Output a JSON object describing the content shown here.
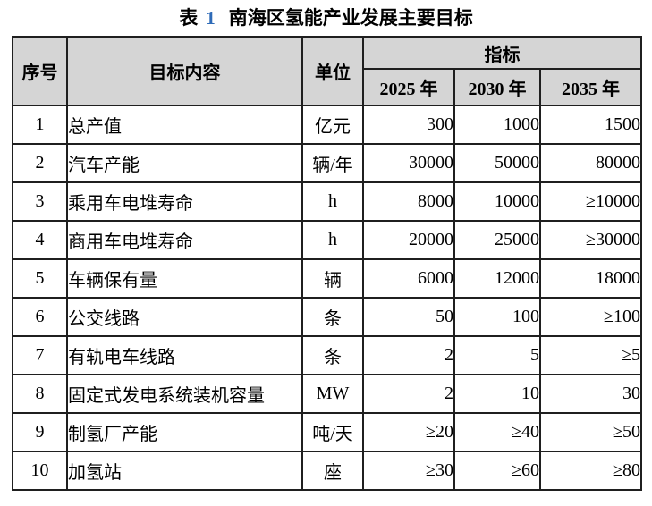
{
  "title": {
    "label": "表",
    "number": "1",
    "text": "南海区氢能产业发展主要目标"
  },
  "table": {
    "header": {
      "serial": "序号",
      "content": "目标内容",
      "unit": "单位",
      "indicator_group": "指标",
      "years": [
        "2025 年",
        "2030 年",
        "2035 年"
      ]
    },
    "rows": [
      {
        "no": "1",
        "content": "总产值",
        "unit": "亿元",
        "y2025": "300",
        "y2030": "1000",
        "y2035": "1500"
      },
      {
        "no": "2",
        "content": "汽车产能",
        "unit": "辆/年",
        "y2025": "30000",
        "y2030": "50000",
        "y2035": "80000"
      },
      {
        "no": "3",
        "content": "乘用车电堆寿命",
        "unit": "h",
        "y2025": "8000",
        "y2030": "10000",
        "y2035": "≥10000"
      },
      {
        "no": "4",
        "content": "商用车电堆寿命",
        "unit": "h",
        "y2025": "20000",
        "y2030": "25000",
        "y2035": "≥30000"
      },
      {
        "no": "5",
        "content": "车辆保有量",
        "unit": "辆",
        "y2025": "6000",
        "y2030": "12000",
        "y2035": "18000"
      },
      {
        "no": "6",
        "content": "公交线路",
        "unit": "条",
        "y2025": "50",
        "y2030": "100",
        "y2035": "≥100"
      },
      {
        "no": "7",
        "content": "有轨电车线路",
        "unit": "条",
        "y2025": "2",
        "y2030": "5",
        "y2035": "≥5"
      },
      {
        "no": "8",
        "content": "固定式发电系统装机容量",
        "unit": "MW",
        "y2025": "2",
        "y2030": "10",
        "y2035": "30"
      },
      {
        "no": "9",
        "content": "制氢厂产能",
        "unit": "吨/天",
        "y2025": "≥20",
        "y2030": "≥40",
        "y2035": "≥50"
      },
      {
        "no": "10",
        "content": "加氢站",
        "unit": "座",
        "y2025": "≥30",
        "y2030": "≥60",
        "y2035": "≥80"
      }
    ]
  },
  "colors": {
    "header_bg": "#d5d5d5",
    "border": "#1f1f1f",
    "text": "#000000",
    "title_number": "#2e6bb8",
    "background": "#ffffff"
  }
}
